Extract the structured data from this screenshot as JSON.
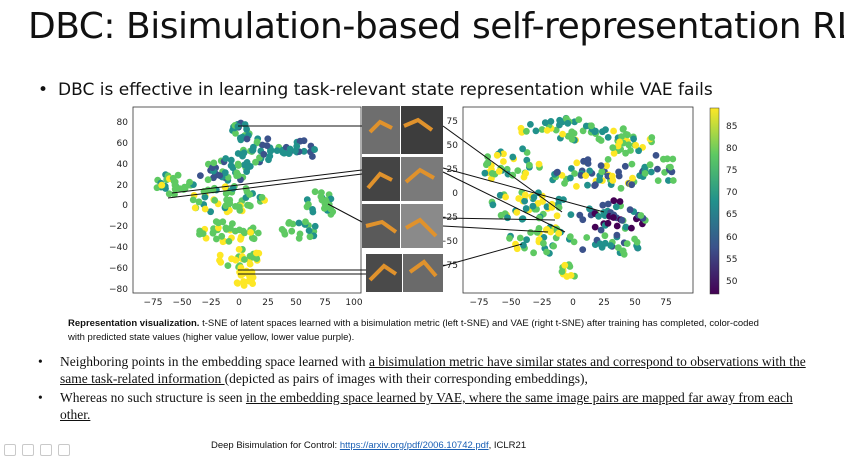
{
  "slide": {
    "title": "DBC: Bisimulation-based self-representation RL",
    "bullet_main": "DBC is effective in learning task-relevant state representation while VAE fails",
    "caption_bold": "Representation visualization.",
    "caption_rest": " t-SNE of latent spaces learned with a bisimulation metric (left t-SNE) and VAE (right t-SNE) after training has completed, color-coded with predicted state values (higher value yellow, lower value purple).",
    "list": [
      {
        "pre": "Neighboring points in the embedding space learned with ",
        "underline": "a bisimulation metric have similar states and correspond to observations with the same task-related information ",
        "post": "(depicted as pairs of images with their corresponding embeddings),"
      },
      {
        "pre": "Whereas no such structure is seen ",
        "underline": "in the embedding space learned by VAE, where the same image pairs are mapped far away from each other.",
        "post": ""
      }
    ],
    "footer_prefix": "Deep Bisimulation for Control: ",
    "footer_link": "https://arxiv.org/pdf/2006.10742.pdf",
    "footer_suffix": ", ICLR21"
  },
  "colors": {
    "purple": "#440154",
    "blue": "#3b528b",
    "teal": "#21918c",
    "green": "#5ec962",
    "yellow": "#fde725"
  },
  "left_plot": {
    "xticks": [
      "−75",
      "−50",
      "−25",
      "0",
      "25",
      "50",
      "75",
      "100"
    ],
    "yticks": [
      "80",
      "60",
      "40",
      "20",
      "0",
      "−20",
      "−40",
      "−60",
      "−80"
    ]
  },
  "right_plot": {
    "xticks": [
      "−75",
      "−50",
      "−25",
      "0",
      "25",
      "50",
      "75"
    ],
    "yticks": [
      "75",
      "50",
      "25",
      "0",
      "−25",
      "−50",
      "−75"
    ]
  },
  "colorbar": {
    "ticks": [
      "85",
      "80",
      "75",
      "70",
      "65",
      "60",
      "55",
      "50"
    ]
  }
}
